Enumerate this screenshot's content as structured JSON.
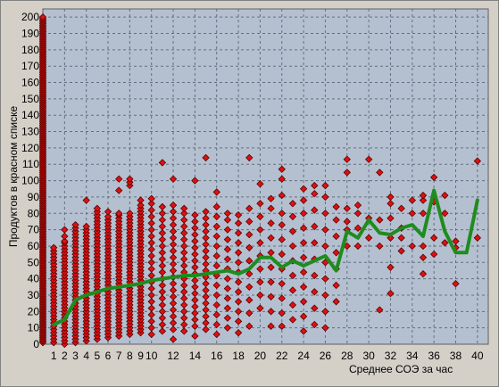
{
  "chart_data": {
    "type": "scatter",
    "xlabel": "Среднее СОЭ за час",
    "ylabel": "Продуктов в красном списке",
    "xlim": [
      0,
      41
    ],
    "ylim": [
      0,
      205
    ],
    "x_ticks": [
      1,
      2,
      3,
      4,
      5,
      6,
      7,
      8,
      9,
      10,
      12,
      14,
      16,
      18,
      20,
      22,
      24,
      26,
      28,
      30,
      32,
      34,
      36,
      38,
      40
    ],
    "y_ticks": [
      0,
      10,
      20,
      30,
      40,
      50,
      60,
      70,
      80,
      90,
      100,
      110,
      120,
      130,
      140,
      150,
      160,
      170,
      180,
      190,
      200
    ],
    "x_gridlines": [
      2,
      4,
      6,
      8,
      10,
      12,
      14,
      16,
      18,
      20,
      22,
      24,
      26,
      28,
      30,
      32,
      34,
      36,
      38,
      40
    ],
    "y_gridlines": [
      10,
      20,
      30,
      40,
      50,
      60,
      70,
      80,
      90,
      100,
      110,
      120,
      130,
      140,
      150,
      160,
      170,
      180,
      190,
      200
    ],
    "marker_color": "#e01010",
    "marker_edge_color": "#5a0000",
    "line_color": "#1e8c1e",
    "plot_background": "#b4c0d0",
    "grid_color": "#607080",
    "trend": {
      "x": [
        1,
        2,
        3,
        4,
        5,
        6,
        7,
        8,
        9,
        10,
        11,
        12,
        13,
        14,
        15,
        16,
        17,
        18,
        19,
        20,
        21,
        22,
        23,
        24,
        25,
        26,
        27,
        28,
        29,
        30,
        31,
        32,
        33,
        34,
        35,
        36,
        37,
        38,
        39,
        40
      ],
      "y": [
        12,
        15,
        27,
        30,
        32,
        34,
        35,
        36,
        37,
        39,
        40,
        41,
        42,
        42,
        43,
        44,
        45,
        43,
        46,
        53,
        53,
        47,
        51,
        48,
        51,
        54,
        45,
        69,
        65,
        76,
        68,
        67,
        71,
        73,
        66,
        94,
        69,
        56,
        56,
        88
      ]
    },
    "columns": [
      {
        "x": 0,
        "values": [
          1,
          2,
          3,
          4,
          5,
          6,
          7,
          8,
          9,
          10,
          11,
          12,
          13,
          14,
          15,
          16,
          17,
          18,
          19,
          20,
          21,
          22,
          23,
          24,
          25,
          26,
          27,
          28,
          29,
          30,
          31,
          32,
          33,
          34,
          35,
          36,
          37,
          38,
          39,
          40,
          41,
          42,
          43,
          44,
          45,
          46,
          47,
          48,
          49,
          50,
          51,
          52,
          53,
          54,
          55,
          56,
          57,
          58,
          59,
          60,
          61,
          62,
          63,
          64,
          65,
          66,
          67,
          68,
          69,
          70,
          71,
          72,
          73,
          74,
          75,
          76,
          77,
          78,
          79,
          80,
          81,
          82,
          83,
          84,
          85,
          86,
          87,
          88,
          89,
          90,
          91,
          92,
          93,
          94,
          95,
          96,
          97,
          98,
          99,
          100,
          101,
          102,
          103,
          104,
          105,
          106,
          107,
          108,
          109,
          110,
          111,
          112,
          113,
          114,
          115,
          116,
          117,
          118,
          119,
          120,
          121,
          122,
          123,
          124,
          125,
          126,
          127,
          128,
          129,
          130,
          131,
          132,
          133,
          134,
          135,
          136,
          137,
          138,
          139,
          140,
          141,
          142,
          143,
          144,
          145,
          146,
          147,
          148,
          149,
          150,
          151,
          152,
          153,
          154,
          155,
          156,
          157,
          158,
          159,
          160,
          161,
          162,
          163,
          164,
          165,
          166,
          167,
          168,
          169,
          170,
          171,
          172,
          173,
          174,
          175,
          176,
          177,
          178,
          179,
          180,
          181,
          182,
          183,
          184,
          185,
          186,
          187,
          188,
          189,
          190,
          191,
          192,
          193,
          194,
          195,
          196,
          197,
          198,
          199,
          200
        ]
      },
      {
        "x": 1,
        "values": [
          1,
          3,
          5,
          7,
          9,
          11,
          13,
          15,
          17,
          19,
          21,
          23,
          25,
          27,
          29,
          31,
          33,
          35,
          37,
          39,
          41,
          43,
          45,
          47,
          49,
          51,
          53,
          55,
          57,
          59
        ]
      },
      {
        "x": 2,
        "values": [
          0,
          2,
          4,
          6,
          8,
          10,
          12,
          14,
          16,
          18,
          20,
          22,
          24,
          26,
          28,
          30,
          32,
          34,
          36,
          38,
          40,
          42,
          44,
          46,
          48,
          50,
          52,
          54,
          56,
          58,
          60,
          62,
          63,
          66,
          70
        ]
      },
      {
        "x": 3,
        "values": [
          1,
          3,
          5,
          7,
          9,
          11,
          13,
          15,
          17,
          19,
          21,
          23,
          25,
          27,
          29,
          31,
          33,
          35,
          37,
          39,
          41,
          43,
          45,
          47,
          49,
          51,
          53,
          55,
          57,
          59,
          61,
          63,
          65,
          67,
          69,
          71,
          73
        ]
      },
      {
        "x": 4,
        "values": [
          2,
          4,
          6,
          8,
          10,
          12,
          14,
          16,
          18,
          20,
          22,
          24,
          26,
          28,
          30,
          32,
          34,
          36,
          38,
          40,
          42,
          44,
          46,
          48,
          50,
          52,
          54,
          56,
          58,
          60,
          62,
          64,
          66,
          68,
          70,
          72,
          88
        ]
      },
      {
        "x": 5,
        "values": [
          3,
          5,
          7,
          9,
          11,
          13,
          15,
          17,
          19,
          21,
          23,
          25,
          27,
          29,
          31,
          33,
          35,
          37,
          39,
          41,
          43,
          45,
          47,
          49,
          51,
          53,
          55,
          57,
          59,
          61,
          63,
          65,
          67,
          69,
          71,
          73,
          75,
          77,
          79,
          81,
          83
        ]
      },
      {
        "x": 6,
        "values": [
          4,
          6,
          8,
          10,
          12,
          14,
          16,
          18,
          20,
          22,
          24,
          26,
          28,
          30,
          32,
          34,
          36,
          38,
          40,
          42,
          44,
          46,
          48,
          50,
          52,
          54,
          56,
          58,
          60,
          62,
          64,
          66,
          68,
          70,
          72,
          74,
          76,
          78,
          81
        ]
      },
      {
        "x": 7,
        "values": [
          5,
          7,
          9,
          11,
          13,
          15,
          17,
          19,
          21,
          23,
          25,
          27,
          29,
          31,
          33,
          35,
          37,
          39,
          41,
          43,
          45,
          47,
          49,
          51,
          53,
          55,
          57,
          59,
          61,
          63,
          65,
          67,
          69,
          71,
          73,
          75,
          77,
          79,
          80,
          94,
          101
        ]
      },
      {
        "x": 8,
        "values": [
          6,
          8,
          10,
          12,
          14,
          16,
          18,
          20,
          22,
          24,
          26,
          28,
          30,
          32,
          34,
          36,
          38,
          40,
          42,
          44,
          46,
          48,
          50,
          52,
          54,
          56,
          58,
          60,
          62,
          64,
          66,
          68,
          70,
          72,
          74,
          76,
          78,
          80,
          97,
          99,
          101
        ]
      },
      {
        "x": 9,
        "values": [
          7,
          9,
          11,
          13,
          15,
          17,
          19,
          21,
          23,
          25,
          27,
          29,
          31,
          33,
          35,
          37,
          39,
          41,
          43,
          45,
          47,
          49,
          51,
          53,
          55,
          57,
          59,
          61,
          63,
          65,
          67,
          69,
          71,
          73,
          75,
          77,
          79,
          81,
          83,
          85,
          88
        ]
      },
      {
        "x": 10,
        "values": [
          6,
          10,
          14,
          18,
          22,
          26,
          30,
          34,
          38,
          42,
          46,
          50,
          54,
          58,
          62,
          66,
          70,
          74,
          78,
          82,
          86,
          89
        ]
      },
      {
        "x": 11,
        "values": [
          8,
          12,
          16,
          20,
          24,
          28,
          32,
          36,
          40,
          44,
          48,
          52,
          56,
          60,
          64,
          68,
          72,
          76,
          80,
          84,
          111
        ]
      },
      {
        "x": 12,
        "values": [
          3,
          9,
          13,
          17,
          21,
          25,
          29,
          33,
          37,
          41,
          45,
          49,
          53,
          57,
          61,
          65,
          69,
          73,
          77,
          81,
          85,
          101
        ]
      },
      {
        "x": 13,
        "values": [
          8,
          12,
          16,
          20,
          24,
          28,
          32,
          36,
          40,
          44,
          48,
          52,
          56,
          60,
          64,
          68,
          72,
          76,
          80,
          83
        ]
      },
      {
        "x": 14,
        "values": [
          5,
          11,
          15,
          19,
          23,
          27,
          31,
          35,
          39,
          43,
          47,
          51,
          55,
          59,
          63,
          67,
          71,
          75,
          79,
          100
        ]
      },
      {
        "x": 15,
        "values": [
          9,
          13,
          17,
          21,
          25,
          29,
          33,
          37,
          41,
          45,
          49,
          53,
          57,
          61,
          65,
          69,
          73,
          77,
          81,
          114
        ]
      },
      {
        "x": 16,
        "values": [
          6,
          12,
          18,
          24,
          30,
          36,
          42,
          48,
          54,
          60,
          66,
          72,
          78,
          84,
          93
        ]
      },
      {
        "x": 17,
        "values": [
          10,
          16,
          22,
          28,
          34,
          40,
          46,
          52,
          58,
          64,
          70,
          76,
          80
        ]
      },
      {
        "x": 18,
        "values": [
          7,
          14,
          20,
          26,
          32,
          38,
          44,
          50,
          56,
          62,
          68,
          74,
          79
        ]
      },
      {
        "x": 19,
        "values": [
          11,
          19,
          27,
          35,
          43,
          51,
          59,
          67,
          75,
          83,
          114
        ]
      },
      {
        "x": 20,
        "values": [
          22,
          30,
          38,
          46,
          54,
          62,
          70,
          78,
          86,
          98
        ]
      },
      {
        "x": 21,
        "values": [
          11,
          20,
          29,
          38,
          47,
          56,
          65,
          74,
          83,
          89
        ]
      },
      {
        "x": 22,
        "values": [
          11,
          19,
          28,
          37,
          46,
          55,
          64,
          73,
          80,
          91,
          101,
          107
        ]
      },
      {
        "x": 23,
        "values": [
          15,
          24,
          33,
          42,
          51,
          60,
          69,
          78,
          86
        ]
      },
      {
        "x": 24,
        "values": [
          8,
          17,
          26,
          35,
          44,
          53,
          62,
          71,
          80,
          88,
          95
        ]
      },
      {
        "x": 25,
        "values": [
          12,
          22,
          32,
          42,
          52,
          62,
          72,
          82,
          92,
          97
        ]
      },
      {
        "x": 26,
        "values": [
          10,
          20,
          30,
          40,
          50,
          60,
          70,
          80,
          90,
          97
        ]
      },
      {
        "x": 27,
        "values": [
          26,
          36,
          46,
          56,
          66,
          76,
          84
        ]
      },
      {
        "x": 28,
        "values": [
          60,
          70,
          75,
          83,
          105,
          113
        ]
      },
      {
        "x": 29,
        "values": [
          60,
          71,
          80,
          85
        ]
      },
      {
        "x": 30,
        "values": [
          65,
          77,
          113
        ]
      },
      {
        "x": 31,
        "values": [
          21,
          60,
          76,
          105
        ]
      },
      {
        "x": 32,
        "values": [
          31,
          47,
          65,
          77,
          86,
          90
        ]
      },
      {
        "x": 33,
        "values": [
          57,
          65,
          71,
          83
        ]
      },
      {
        "x": 34,
        "values": [
          60,
          80,
          88
        ]
      },
      {
        "x": 35,
        "values": [
          43,
          53,
          60,
          80,
          88,
          91
        ]
      },
      {
        "x": 36,
        "values": [
          55,
          65,
          87,
          102
        ]
      },
      {
        "x": 37,
        "values": [
          62,
          80,
          91
        ]
      },
      {
        "x": 38,
        "values": [
          37,
          59,
          63
        ]
      },
      {
        "x": 40,
        "values": [
          65,
          112
        ]
      }
    ]
  }
}
